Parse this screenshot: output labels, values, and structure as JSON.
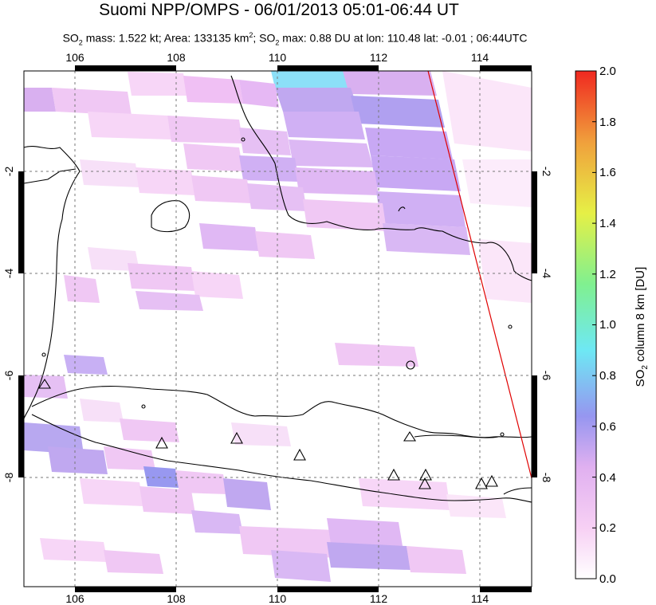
{
  "title": "Suomi NPP/OMPS - 06/01/2013 05:01-06:44 UT",
  "subtitle": {
    "mass_prefix": "SO",
    "mass_sub": "2",
    "mass_text": " mass: 1.522 kt; Area: 133135 km",
    "area_sup": "2",
    "max_prefix": "; SO",
    "max_sub": "2",
    "max_text": " max: 0.88 DU at lon: 110.48 lat: -0.01 ; 06:44UTC"
  },
  "map": {
    "lon_ticks": [
      "106",
      "108",
      "110",
      "112",
      "114"
    ],
    "lat_ticks": [
      "-2",
      "-4",
      "-6",
      "-8"
    ],
    "volcano_markers": 10,
    "orbit_edge_color": "#e00000",
    "coastline_color": "#000000"
  },
  "colorbar": {
    "label_prefix": "SO",
    "label_sub": "2",
    "label_text": " column 8 km [DU]",
    "ticks": [
      "2.0",
      "1.8",
      "1.6",
      "1.4",
      "1.2",
      "1.0",
      "0.8",
      "0.6",
      "0.4",
      "0.2",
      "0.0"
    ],
    "range": [
      0.0,
      2.0
    ],
    "colors": [
      "#ffffff",
      "#f7c6f0",
      "#d7a6f0",
      "#8c8cf0",
      "#6ee6f0",
      "#8cf08c",
      "#e6f046",
      "#f0a03c",
      "#f03c28"
    ]
  }
}
